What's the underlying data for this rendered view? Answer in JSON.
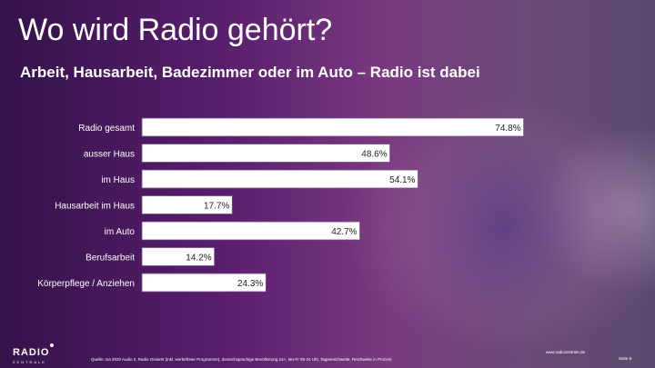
{
  "header": {
    "title": "Wo wird Radio gehört?",
    "subtitle": "Arbeit, Hausarbeit, Badezimmer oder im Auto – Radio ist dabei"
  },
  "footer": {
    "logo": "RADIO",
    "logo_sub": "ZENTRALE",
    "source": "Quelle: ma 2020 Audio II, Radio Gesamt (inkl. werbefreier Programme), deutschsprachige Bevölkerung 14+, Mo-Fr 05-24 Uhr, Tagesreichweite, Reichweite in Prozent",
    "website": "www.radiozentrale.de",
    "page": "Seite 8"
  },
  "colors": {
    "bar": "#ffffff",
    "bar_border": "#7a4a8a",
    "text": "#ffffff",
    "label_text": "#222222"
  },
  "chart_data": {
    "type": "bar",
    "orientation": "horizontal",
    "categories": [
      "Radio gesamt",
      "ausser Haus",
      "im Haus",
      "Hausarbeit im Haus",
      "im Auto",
      "Berufsarbeit",
      "Körperpflege / Anziehen"
    ],
    "values": [
      74.8,
      48.6,
      54.1,
      17.7,
      42.7,
      14.2,
      24.3
    ],
    "value_labels": [
      "74.8%",
      "48.6%",
      "54.1%",
      "17.7%",
      "42.7%",
      "14.2%",
      "24.3%"
    ],
    "unit": "%",
    "xlim": [
      0,
      100
    ],
    "grid": false,
    "legend": "none"
  }
}
